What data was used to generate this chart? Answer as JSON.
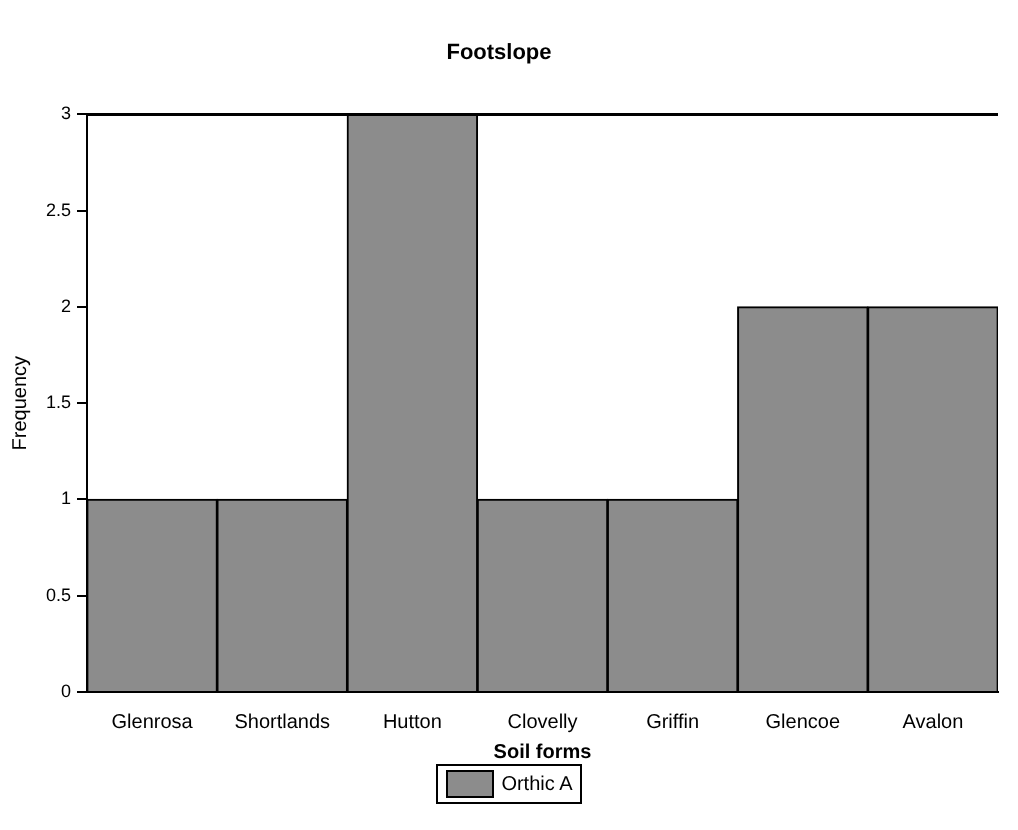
{
  "chart_data": {
    "type": "bar",
    "title": "Footslope",
    "xlabel": "Soil forms",
    "ylabel": "Frequency",
    "categories": [
      "Glenrosa",
      "Shortlands",
      "Hutton",
      "Clovelly",
      "Griffin",
      "Glencoe",
      "Avalon"
    ],
    "series": [
      {
        "name": "Orthic A",
        "color": "#8c8c8c",
        "values": [
          1,
          1,
          3,
          1,
          1,
          2,
          2
        ]
      }
    ],
    "ylim": [
      0,
      3
    ],
    "yticks": [
      0,
      0.5,
      1,
      1.5,
      2,
      2.5,
      3
    ],
    "grid": false,
    "legend": "bottom"
  }
}
